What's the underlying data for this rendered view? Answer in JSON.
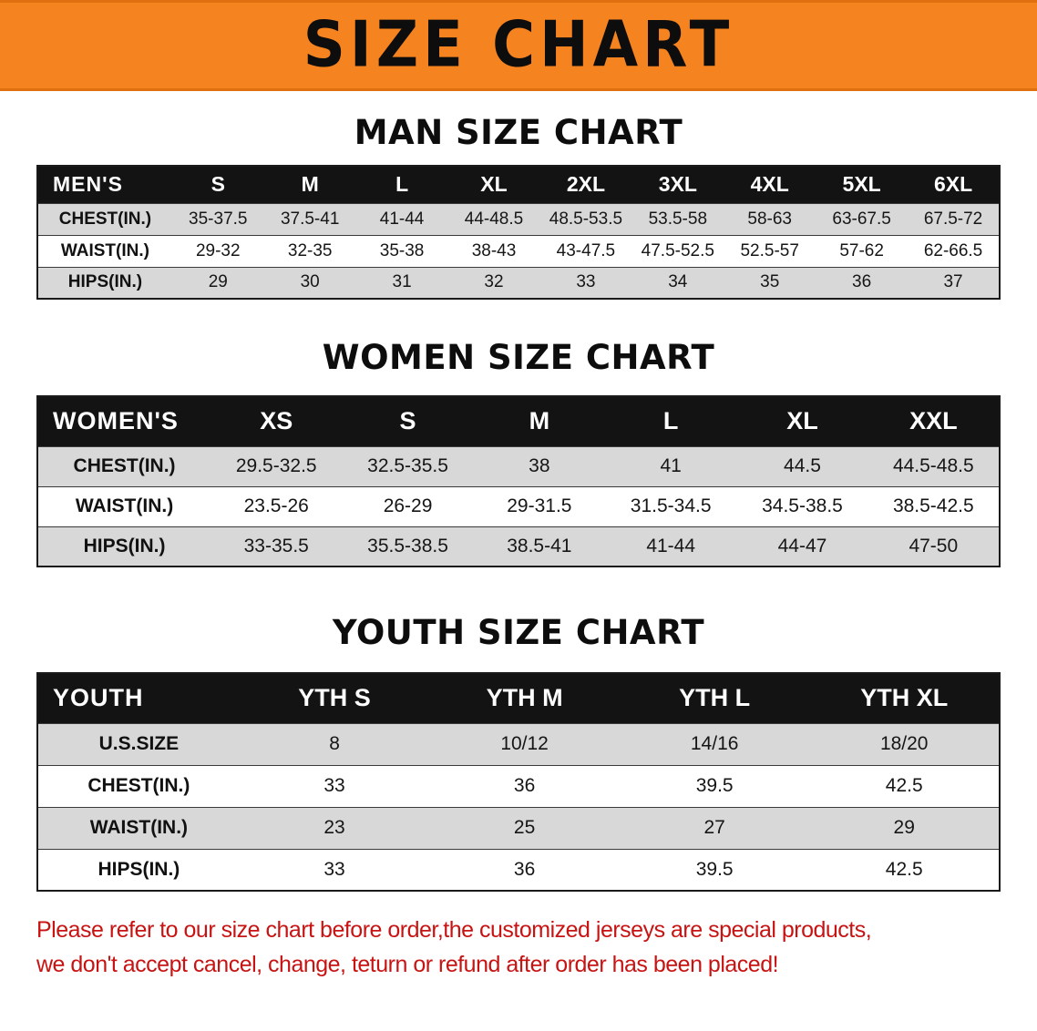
{
  "banner": {
    "title": "SIZE CHART",
    "bg_color": "#f5831f"
  },
  "sections": [
    {
      "heading": "MAN SIZE CHART",
      "table": {
        "header_label": "MEN'S",
        "columns": [
          "S",
          "M",
          "L",
          "XL",
          "2XL",
          "3XL",
          "4XL",
          "5XL",
          "6XL"
        ],
        "rows": [
          {
            "label": "CHEST(IN.)",
            "values": [
              "35-37.5",
              "37.5-41",
              "41-44",
              "44-48.5",
              "48.5-53.5",
              "53.5-58",
              "58-63",
              "63-67.5",
              "67.5-72"
            ]
          },
          {
            "label": "WAIST(IN.)",
            "values": [
              "29-32",
              "32-35",
              "35-38",
              "38-43",
              "43-47.5",
              "47.5-52.5",
              "52.5-57",
              "57-62",
              "62-66.5"
            ]
          },
          {
            "label": "HIPS(IN.)",
            "values": [
              "29",
              "30",
              "31",
              "32",
              "33",
              "34",
              "35",
              "36",
              "37"
            ]
          }
        ]
      }
    },
    {
      "heading": "WOMEN SIZE CHART",
      "table": {
        "header_label": "WOMEN'S",
        "columns": [
          "XS",
          "S",
          "M",
          "L",
          "XL",
          "XXL"
        ],
        "rows": [
          {
            "label": "CHEST(IN.)",
            "values": [
              "29.5-32.5",
              "32.5-35.5",
              "38",
              "41",
              "44.5",
              "44.5-48.5"
            ]
          },
          {
            "label": "WAIST(IN.)",
            "values": [
              "23.5-26",
              "26-29",
              "29-31.5",
              "31.5-34.5",
              "34.5-38.5",
              "38.5-42.5"
            ]
          },
          {
            "label": "HIPS(IN.)",
            "values": [
              "33-35.5",
              "35.5-38.5",
              "38.5-41",
              "41-44",
              "44-47",
              "47-50"
            ]
          }
        ]
      }
    },
    {
      "heading": "YOUTH SIZE CHART",
      "table": {
        "header_label": "YOUTH",
        "columns": [
          "YTH S",
          "YTH M",
          "YTH L",
          "YTH XL"
        ],
        "rows": [
          {
            "label": "U.S.SIZE",
            "values": [
              "8",
              "10/12",
              "14/16",
              "18/20"
            ]
          },
          {
            "label": "CHEST(IN.)",
            "values": [
              "33",
              "36",
              "39.5",
              "42.5"
            ]
          },
          {
            "label": "WAIST(IN.)",
            "values": [
              "23",
              "25",
              "27",
              "29"
            ]
          },
          {
            "label": "HIPS(IN.)",
            "values": [
              "33",
              "36",
              "39.5",
              "42.5"
            ]
          }
        ]
      }
    }
  ],
  "footer": {
    "line1": "Please refer to our size chart before order,the customized jerseys are special products,",
    "line2": "we don't accept cancel, change, teturn or refund after order has been placed!",
    "color": "#c81313"
  }
}
